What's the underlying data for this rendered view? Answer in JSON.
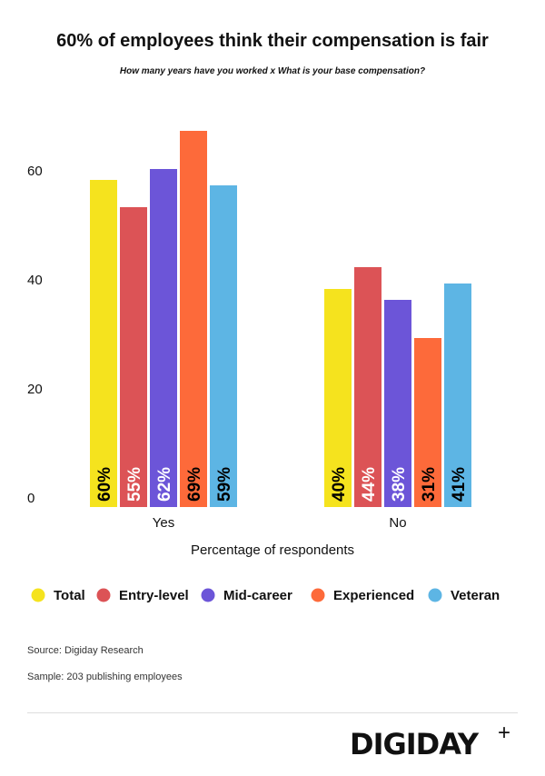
{
  "chart_data": {
    "type": "bar",
    "title": "60% of employees think their compensation is fair",
    "subtitle": "How many years have you worked x What is your base compensation?",
    "xlabel": "Percentage of respondents",
    "ylabel": "",
    "ylim": [
      0,
      70
    ],
    "yticks": [
      "0",
      "20",
      "40",
      "60"
    ],
    "ytick_values": [
      0,
      20,
      40,
      60
    ],
    "categories": [
      "Yes",
      "No"
    ],
    "legend_position": "bottom",
    "series": [
      {
        "name": "Total",
        "color": "#f5e31e",
        "label_color": "#000000",
        "values": [
          60,
          40
        ],
        "labels": [
          "60%",
          "40%"
        ]
      },
      {
        "name": "Entry-level",
        "color": "#dc5356",
        "label_color": "#ffffff",
        "values": [
          55,
          44
        ],
        "labels": [
          "55%",
          "44%"
        ]
      },
      {
        "name": "Mid-career",
        "color": "#6c55d8",
        "label_color": "#ffffff",
        "values": [
          62,
          38
        ],
        "labels": [
          "62%",
          "38%"
        ]
      },
      {
        "name": "Experienced",
        "color": "#fd6a3a",
        "label_color": "#000000",
        "values": [
          69,
          31
        ],
        "labels": [
          "69%",
          "31%"
        ]
      },
      {
        "name": "Veteran",
        "color": "#5db5e4",
        "label_color": "#000000",
        "values": [
          59,
          41
        ],
        "labels": [
          "59%",
          "41%"
        ]
      }
    ]
  },
  "footer": {
    "source": "Source: Digiday Research",
    "sample": "Sample: 203 publishing employees",
    "logo": "DIGIDAY",
    "logo_mark": "+"
  }
}
